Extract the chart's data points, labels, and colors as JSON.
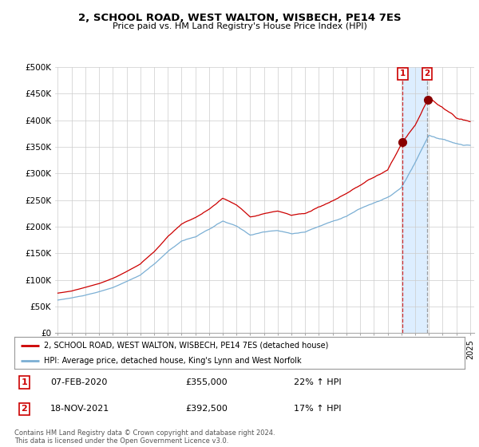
{
  "title": "2, SCHOOL ROAD, WEST WALTON, WISBECH, PE14 7ES",
  "subtitle": "Price paid vs. HM Land Registry's House Price Index (HPI)",
  "ylabel_ticks": [
    "£0",
    "£50K",
    "£100K",
    "£150K",
    "£200K",
    "£250K",
    "£300K",
    "£350K",
    "£400K",
    "£450K",
    "£500K"
  ],
  "ylim": [
    0,
    500000
  ],
  "xlim": [
    1994.8,
    2025.3
  ],
  "legend_line1": "2, SCHOOL ROAD, WEST WALTON, WISBECH, PE14 7ES (detached house)",
  "legend_line2": "HPI: Average price, detached house, King's Lynn and West Norfolk",
  "sale1_label": "1",
  "sale1_date": "07-FEB-2020",
  "sale1_price": "£355,000",
  "sale1_hpi": "22% ↑ HPI",
  "sale1_year": 2020.1,
  "sale1_value": 355000,
  "sale2_label": "2",
  "sale2_date": "18-NOV-2021",
  "sale2_price": "£392,500",
  "sale2_hpi": "17% ↑ HPI",
  "sale2_year": 2021.88,
  "sale2_value": 392500,
  "footer": "Contains HM Land Registry data © Crown copyright and database right 2024.\nThis data is licensed under the Open Government Licence v3.0.",
  "line_color_red": "#cc0000",
  "line_color_blue": "#7bafd4",
  "shade_color": "#ddeeff",
  "background_color": "#ffffff",
  "grid_color": "#cccccc"
}
